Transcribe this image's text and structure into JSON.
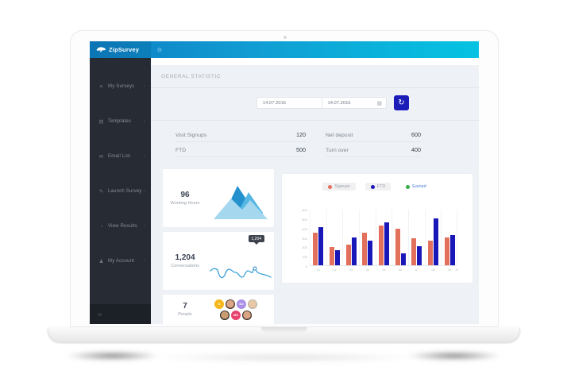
{
  "topbar": {
    "logo_text": "ZipSurvey"
  },
  "icons": {
    "menu": "⊙",
    "calendar": "▦",
    "refresh": "↻",
    "chevron": "›",
    "power": "∪"
  },
  "sidebar": {
    "items": [
      {
        "label": "My Surveys",
        "icon": "≡"
      },
      {
        "label": "Templates",
        "icon": "▤"
      },
      {
        "label": "Email List",
        "icon": "✉"
      },
      {
        "label": "Launch Survey",
        "icon": "✎"
      },
      {
        "label": "View Results",
        "icon": "◔"
      },
      {
        "label": "My Account",
        "icon": "♟"
      }
    ]
  },
  "content": {
    "section_title": "GENERAL STATISTIC",
    "date_range": {
      "from": "14.07.2016",
      "to": "14.07.2016"
    },
    "stats": [
      {
        "label": "Visit Signups",
        "value": "120"
      },
      {
        "label": "Net deposit",
        "value": "600"
      },
      {
        "label": "FTD",
        "value": "500"
      },
      {
        "label": "Turn over",
        "value": "400"
      }
    ],
    "widgets": {
      "working_hours": {
        "value": "96",
        "label": "Working Hours"
      },
      "conversations": {
        "value": "1,204",
        "label": "Conversations",
        "tooltip": "1,204"
      },
      "people": {
        "value": "7",
        "label": "People",
        "avatars": [
          {
            "kind": "badge",
            "initials": "S",
            "color": "#f5b719"
          },
          {
            "kind": "photo",
            "tone": "#dba687",
            "hair": "#4a342a"
          },
          {
            "kind": "badge",
            "initials": "MJ",
            "color": "#a98fe6"
          },
          {
            "kind": "photo",
            "tone": "#e9c9a5",
            "hair": "#b9b2a6"
          },
          {
            "kind": "photo",
            "tone": "#c99c72",
            "hair": "#2e2a25"
          },
          {
            "kind": "badge",
            "initials": "MS",
            "color": "#e8436f"
          },
          {
            "kind": "photo",
            "tone": "#d8a483",
            "hair": "#3b2e27"
          }
        ]
      }
    }
  },
  "chart_data": {
    "type": "bar",
    "title": "",
    "categories": [
      "01",
      "02",
      "03",
      "04",
      "05",
      "06",
      "07",
      "08",
      "09"
    ],
    "x_end_label": "10",
    "series": [
      {
        "name": "Signups",
        "color": "#e2705c",
        "legend_pill": true,
        "values": [
          350,
          200,
          225,
          355,
          430,
          395,
          290,
          265,
          300
        ]
      },
      {
        "name": "FTD",
        "color": "#1a17b8",
        "legend_pill": true,
        "values": [
          410,
          160,
          300,
          265,
          460,
          130,
          210,
          510,
          330
        ]
      },
      {
        "name": "Earned",
        "color": "#35ad44",
        "legend_pill": false,
        "values": []
      }
    ],
    "ylim": [
      0,
      600
    ],
    "yticks": [
      0,
      100,
      200,
      300,
      400,
      500,
      600
    ],
    "grid": "vertical",
    "legend_position": "top"
  },
  "colors": {
    "topbar_gradient_start": "#0d80c4",
    "topbar_gradient_end": "#05c3e2",
    "accent_button": "#1c1cb8",
    "sidebar_bg": "#272c34",
    "content_bg": "#eef1f5"
  }
}
